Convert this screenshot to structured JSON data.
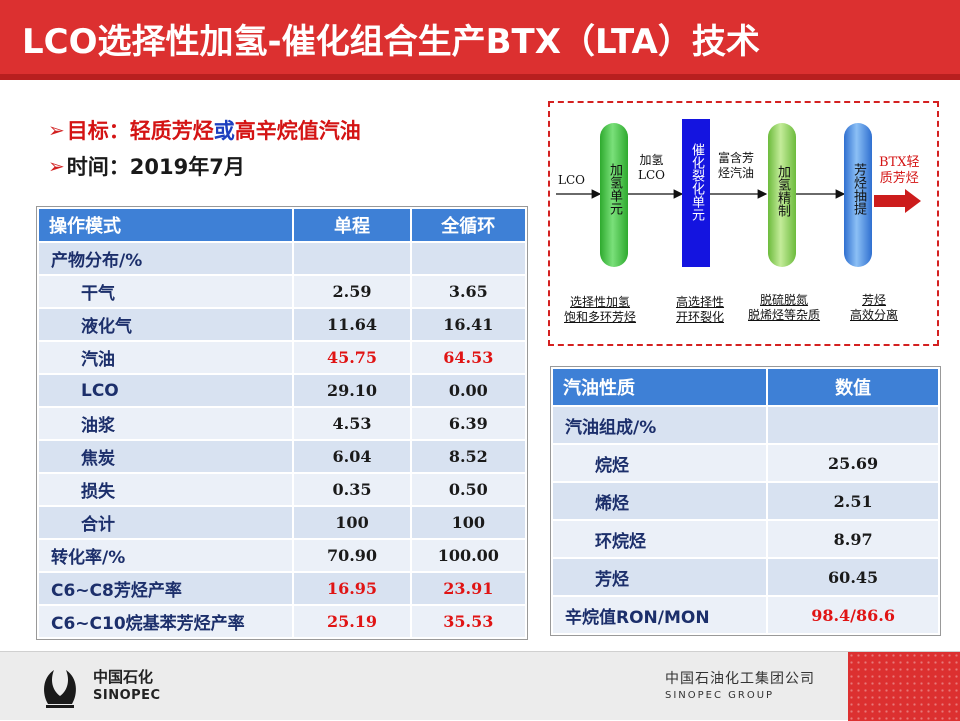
{
  "title": "LCO选择性加氢-催化组合生产BTX（LTA）技术",
  "bullets": {
    "goal_label": "目标：",
    "goal_part1": "轻质芳烃",
    "goal_or": "或",
    "goal_part2": "高辛烷值汽油",
    "time_label": "时间：",
    "time_value": "2019年7月"
  },
  "left_table": {
    "headers": [
      "操作模式",
      "单程",
      "全循环"
    ],
    "product_distribution": "产物分布/%",
    "rows": [
      {
        "name": "干气",
        "single": "2.59",
        "full": "3.65"
      },
      {
        "name": "液化气",
        "single": "11.64",
        "full": "16.41"
      },
      {
        "name": "汽油",
        "single": "45.75",
        "full": "64.53"
      },
      {
        "name": "LCO",
        "single": "29.10",
        "full": "0.00"
      },
      {
        "name": "油浆",
        "single": "4.53",
        "full": "6.39"
      },
      {
        "name": "焦炭",
        "single": "6.04",
        "full": "8.52"
      },
      {
        "name": "损失",
        "single": "0.35",
        "full": "0.50"
      },
      {
        "name": "合计",
        "single": "100",
        "full": "100"
      }
    ],
    "conversion": {
      "name": "转化率/%",
      "single": "70.90",
      "full": "100.00"
    },
    "c6c8": {
      "name": "C6~C8芳烃产率",
      "single": "16.95",
      "full": "23.91"
    },
    "c6c10": {
      "name": "C6~C10烷基苯芳烃产率",
      "single": "25.19",
      "full": "35.53"
    }
  },
  "right_table": {
    "headers": [
      "汽油性质",
      "数值"
    ],
    "composition": "汽油组成/%",
    "rows": [
      {
        "name": "烷烃",
        "value": "25.69"
      },
      {
        "name": "烯烃",
        "value": "2.51"
      },
      {
        "name": "环烷烃",
        "value": "8.97"
      },
      {
        "name": "芳烃",
        "value": "60.45"
      }
    ],
    "octane": {
      "name": "辛烷值RON/MON",
      "value": "98.4/86.6"
    }
  },
  "diagram": {
    "input": "LCO",
    "unit1": "加氢单元",
    "stream1": [
      "加氢",
      "LCO"
    ],
    "unit2": "催化裂化单元",
    "stream2": [
      "富含芳",
      "烃汽油"
    ],
    "unit3": "加氢精制",
    "unit4": "芳烃抽提",
    "output": [
      "BTX轻",
      "质芳烃"
    ],
    "notes": [
      [
        "选择性加氢",
        "饱和多环芳烃"
      ],
      [
        "高选择性",
        "开环裂化"
      ],
      [
        "脱硫脱氮",
        "脱烯烃等杂质"
      ],
      [
        "芳烃",
        "高效分离"
      ]
    ]
  },
  "footer": {
    "logo_cn": "中国石化",
    "logo_en": "SINOPEC",
    "group_cn": "中国石油化工集团公司",
    "group_en": "SINOPEC GROUP"
  },
  "colors": {
    "brand_red": "#dc3030",
    "table_header_blue": "#3e80d6",
    "highlight_red": "#e01414",
    "unit1_green": "#3cc83c",
    "unit2_blue": "#1414e0",
    "unit3_green": "#8ed060",
    "unit4_blue": "#4a8ee8"
  }
}
